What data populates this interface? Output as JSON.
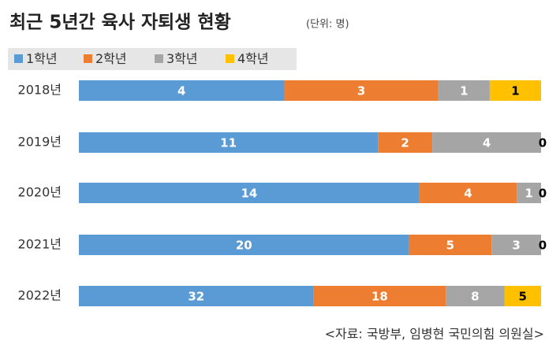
{
  "chart_data": {
    "type": "bar",
    "orientation": "horizontal",
    "stacked": "percent",
    "title": "최근 5년간 육사 자퇴생 현황",
    "subtitle": "(단위: 명)",
    "source": "<자료: 국방부, 임병현 국민의힘 의원실>",
    "categories": [
      "2018년",
      "2019년",
      "2020년",
      "2021년",
      "2022년"
    ],
    "series": [
      {
        "name": "1학년",
        "color": "#5b9bd5",
        "label_color": "#ffffff",
        "values": [
          4,
          11,
          14,
          20,
          32
        ]
      },
      {
        "name": "2학년",
        "color": "#ed7d31",
        "label_color": "#ffffff",
        "values": [
          3,
          2,
          4,
          5,
          18
        ]
      },
      {
        "name": "3학년",
        "color": "#a5a5a5",
        "label_color": "#ffffff",
        "values": [
          1,
          4,
          1,
          3,
          8
        ]
      },
      {
        "name": "4학년",
        "color": "#ffc000",
        "label_color": "#000000",
        "values": [
          1,
          0,
          0,
          0,
          5
        ]
      }
    ],
    "legend": "top-left"
  }
}
